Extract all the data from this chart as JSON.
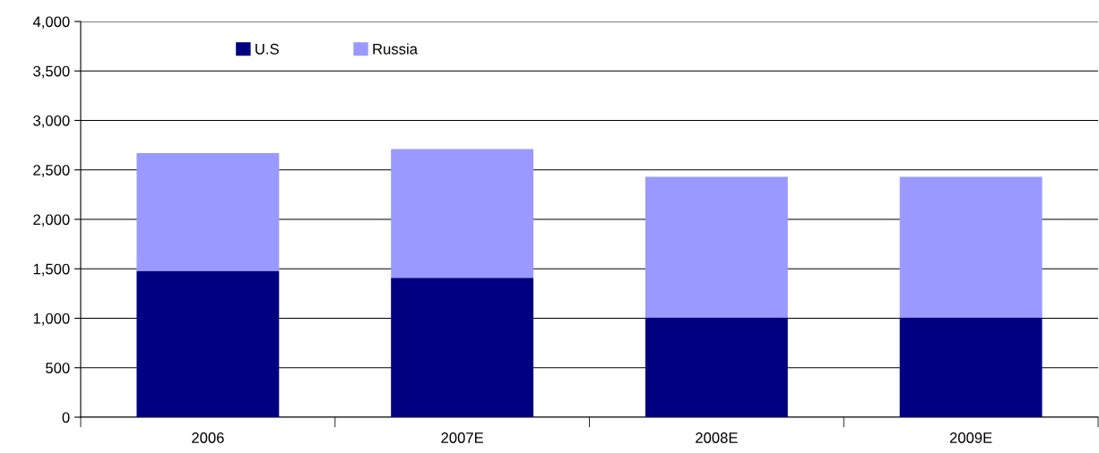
{
  "chart_data": {
    "type": "bar",
    "stacked": true,
    "categories": [
      "2006",
      "2007E",
      "2008E",
      "2009E"
    ],
    "series": [
      {
        "name": "U.S",
        "color": "#000080",
        "values": [
          1480,
          1410,
          1010,
          1010
        ]
      },
      {
        "name": "Russia",
        "color": "#9999ff",
        "values": [
          1190,
          1300,
          1420,
          1420
        ]
      }
    ],
    "ylim": [
      0,
      4000
    ],
    "yticks": [
      {
        "value": 0,
        "label": "0"
      },
      {
        "value": 500,
        "label": "500"
      },
      {
        "value": 1000,
        "label": "1,000"
      },
      {
        "value": 1500,
        "label": "1,500"
      },
      {
        "value": 2000,
        "label": "2,000"
      },
      {
        "value": 2500,
        "label": "2,500"
      },
      {
        "value": 3000,
        "label": "3,000"
      },
      {
        "value": 3500,
        "label": "3,500"
      },
      {
        "value": 4000,
        "label": "4,000"
      }
    ],
    "grid": "y",
    "legend": "top left"
  }
}
